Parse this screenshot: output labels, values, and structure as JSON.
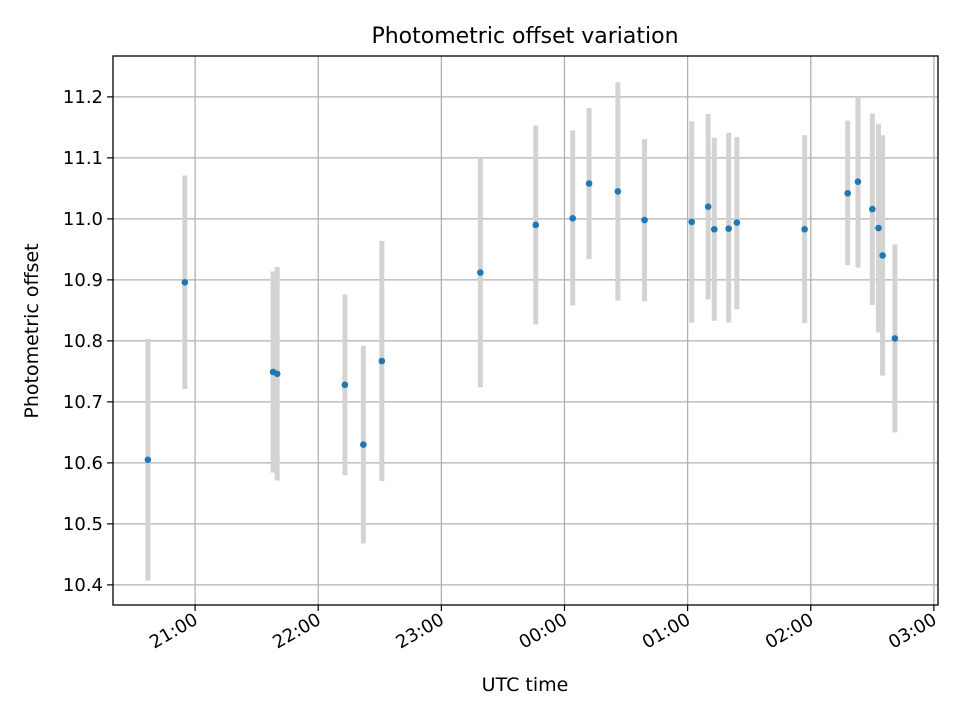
{
  "chart_data": {
    "type": "scatter",
    "title": "Photometric offset variation",
    "xlabel": "UTC time",
    "ylabel": "Photometric offset",
    "x_tick_labels": [
      "21:00",
      "22:00",
      "23:00",
      "00:00",
      "01:00",
      "02:00",
      "03:00"
    ],
    "y_tick_labels": [
      "10.4",
      "10.5",
      "10.6",
      "10.7",
      "10.8",
      "10.9",
      "11.0",
      "11.1",
      "11.2"
    ],
    "y_ticks": [
      10.4,
      10.5,
      10.6,
      10.7,
      10.8,
      10.9,
      11.0,
      11.1,
      11.2
    ],
    "xlim": [
      "20:20",
      "03:02"
    ],
    "ylim": [
      10.367,
      11.267
    ],
    "grid": true,
    "colors": {
      "point": "#1f77b4",
      "errorbar": "#d3d3d3",
      "grid": "#b0b0b0",
      "axes": "#000000"
    },
    "points": [
      {
        "x": "20:37",
        "y": 10.605,
        "ylow": 10.407,
        "yhigh": 10.803
      },
      {
        "x": "20:55",
        "y": 10.896,
        "ylow": 10.721,
        "yhigh": 11.071
      },
      {
        "x": "21:38",
        "y": 10.749,
        "ylow": 10.584,
        "yhigh": 10.914
      },
      {
        "x": "21:40",
        "y": 10.746,
        "ylow": 10.571,
        "yhigh": 10.921
      },
      {
        "x": "22:13",
        "y": 10.728,
        "ylow": 10.58,
        "yhigh": 10.876
      },
      {
        "x": "22:22",
        "y": 10.63,
        "ylow": 10.468,
        "yhigh": 10.792
      },
      {
        "x": "22:31",
        "y": 10.767,
        "ylow": 10.57,
        "yhigh": 10.964
      },
      {
        "x": "23:19",
        "y": 10.912,
        "ylow": 10.724,
        "yhigh": 11.1
      },
      {
        "x": "23:46",
        "y": 10.99,
        "ylow": 10.827,
        "yhigh": 11.153
      },
      {
        "x": "00:04",
        "y": 11.001,
        "ylow": 10.858,
        "yhigh": 11.145
      },
      {
        "x": "00:12",
        "y": 11.058,
        "ylow": 10.934,
        "yhigh": 11.182
      },
      {
        "x": "00:26",
        "y": 11.045,
        "ylow": 10.866,
        "yhigh": 11.224
      },
      {
        "x": "00:39",
        "y": 10.998,
        "ylow": 10.865,
        "yhigh": 11.131
      },
      {
        "x": "01:02",
        "y": 10.995,
        "ylow": 10.83,
        "yhigh": 11.16
      },
      {
        "x": "01:10",
        "y": 11.02,
        "ylow": 10.868,
        "yhigh": 11.172
      },
      {
        "x": "01:13",
        "y": 10.983,
        "ylow": 10.833,
        "yhigh": 11.133
      },
      {
        "x": "01:20",
        "y": 10.984,
        "ylow": 10.83,
        "yhigh": 11.141
      },
      {
        "x": "01:24",
        "y": 10.994,
        "ylow": 10.852,
        "yhigh": 11.134
      },
      {
        "x": "01:57",
        "y": 10.983,
        "ylow": 10.829,
        "yhigh": 11.137
      },
      {
        "x": "02:18",
        "y": 11.042,
        "ylow": 10.924,
        "yhigh": 11.161
      },
      {
        "x": "02:23",
        "y": 11.061,
        "ylow": 10.92,
        "yhigh": 11.2
      },
      {
        "x": "02:30",
        "y": 11.016,
        "ylow": 10.859,
        "yhigh": 11.173
      },
      {
        "x": "02:33",
        "y": 10.985,
        "ylow": 10.814,
        "yhigh": 11.156
      },
      {
        "x": "02:35",
        "y": 10.94,
        "ylow": 10.743,
        "yhigh": 11.137
      },
      {
        "x": "02:41",
        "y": 10.804,
        "ylow": 10.65,
        "yhigh": 10.958
      }
    ]
  }
}
